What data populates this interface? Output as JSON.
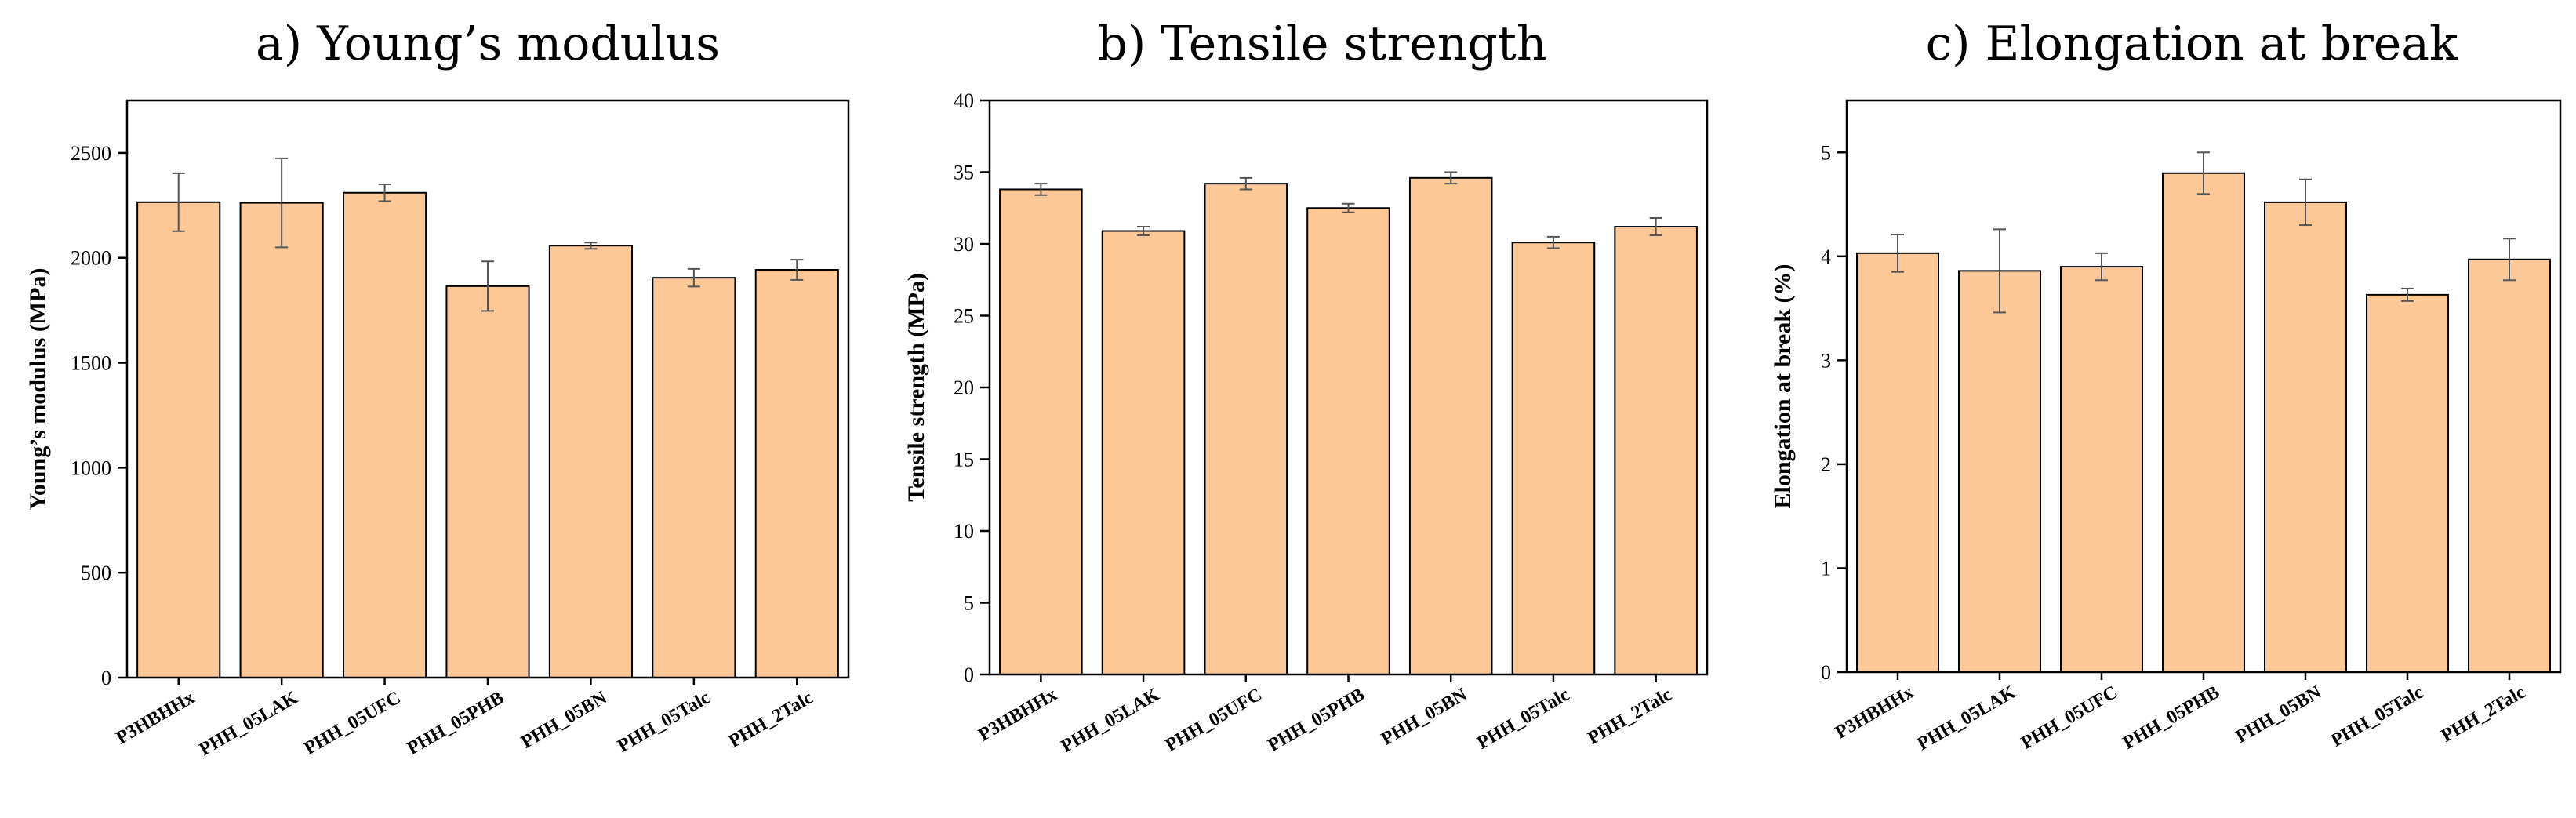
{
  "chart_data": [
    {
      "type": "bar",
      "title": "a) Young’s modulus",
      "xlabel": "",
      "ylabel": "Young’s modulus (MPa)",
      "categories": [
        "P3HBHHx",
        "PHH_05LAK",
        "PHH_05UFC",
        "PHH_05PHB",
        "PHH_05BN",
        "PHH_05Talc",
        "PHH_2Talc"
      ],
      "values": [
        2265,
        2262,
        2310,
        1865,
        2058,
        1905,
        1943
      ],
      "errors": [
        138,
        212,
        40,
        118,
        15,
        42,
        48
      ],
      "ylim": [
        0,
        2750
      ],
      "yticks": [
        0,
        500,
        1000,
        1500,
        2000,
        2500
      ],
      "bar_color": "#fdc898"
    },
    {
      "type": "bar",
      "title": "b) Tensile strength",
      "xlabel": "",
      "ylabel": "Tensile strength (MPa)",
      "categories": [
        "P3HBHHx",
        "PHH_05LAK",
        "PHH_05UFC",
        "PHH_05PHB",
        "PHH_05BN",
        "PHH_05Talc",
        "PHH_2Talc"
      ],
      "values": [
        33.8,
        30.9,
        34.2,
        32.5,
        34.6,
        30.1,
        31.2
      ],
      "errors": [
        0.4,
        0.3,
        0.4,
        0.3,
        0.4,
        0.4,
        0.6
      ],
      "ylim": [
        0,
        40
      ],
      "yticks": [
        0,
        5,
        10,
        15,
        20,
        25,
        30,
        35,
        40
      ],
      "bar_color": "#fdc898"
    },
    {
      "type": "bar",
      "title": "c) Elongation at break",
      "xlabel": "",
      "ylabel": "Elongation at break (%)",
      "categories": [
        "P3HBHHx",
        "PHH_05LAK",
        "PHH_05UFC",
        "PHH_05PHB",
        "PHH_05BN",
        "PHH_05Talc",
        "PHH_2Talc"
      ],
      "values": [
        4.03,
        3.86,
        3.9,
        4.8,
        4.52,
        3.63,
        3.97
      ],
      "errors": [
        0.18,
        0.4,
        0.13,
        0.2,
        0.22,
        0.06,
        0.2
      ],
      "ylim": [
        0,
        5.5
      ],
      "yticks": [
        0,
        1,
        2,
        3,
        4,
        5
      ],
      "bar_color": "#fdc898"
    }
  ]
}
